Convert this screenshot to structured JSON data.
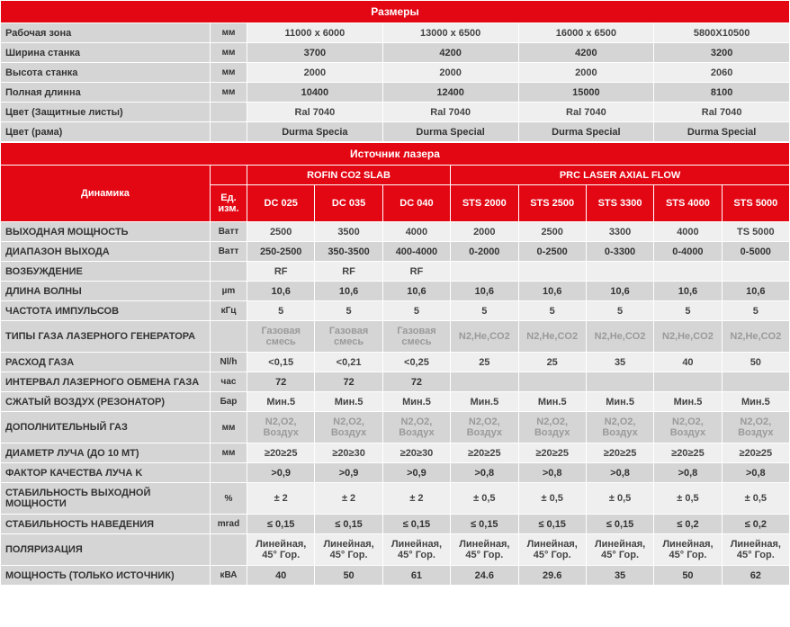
{
  "colors": {
    "red": "#e30613",
    "grey_dark": "#d5d5d5",
    "grey_light": "#efefef",
    "text": "#333"
  },
  "section1": {
    "title": "Размеры",
    "rows": [
      {
        "label": "Рабочая зона",
        "unit": "мм",
        "vals": [
          "11000 x 6000",
          "13000 x 6500",
          "16000 x 6500",
          "5800X10500"
        ]
      },
      {
        "label": "Ширина станка",
        "unit": "мм",
        "vals": [
          "3700",
          "4200",
          "4200",
          "3200"
        ]
      },
      {
        "label": "Высота станка",
        "unit": "мм",
        "vals": [
          "2000",
          "2000",
          "2000",
          "2060"
        ]
      },
      {
        "label": "Полная длинна",
        "unit": "мм",
        "vals": [
          "10400",
          "12400",
          "15000",
          "8100"
        ]
      },
      {
        "label": "Цвет (Защитные листы)",
        "unit": "",
        "vals": [
          "Ral 7040",
          "Ral 7040",
          "Ral 7040",
          "Ral 7040"
        ]
      },
      {
        "label": "Цвет (рама)",
        "unit": "",
        "vals": [
          "Durma Specia",
          "Durma Special",
          "Durma Special",
          "Durma Special"
        ]
      }
    ]
  },
  "section2": {
    "title": "Источник лазера",
    "group1": "ROFIN CO2 SLAB",
    "group2": "PRC LASER AXIAL FLOW",
    "dynLabel": "Динамика",
    "unitLabel": "Ед. изм.",
    "cols": [
      "DC 025",
      "DC 035",
      "DC 040",
      "STS 2000",
      "STS 2500",
      "STS 3300",
      "STS 4000",
      "STS 5000"
    ],
    "rows": [
      {
        "label": "ВЫХОДНАЯ МОЩНОСТЬ",
        "unit": "Ватт",
        "vals": [
          "2500",
          "3500",
          "4000",
          "2000",
          "2500",
          "3300",
          "4000",
          "TS 5000"
        ],
        "pale": false
      },
      {
        "label": "ДИАПАЗОН ВЫХОДА",
        "unit": "Ватт",
        "vals": [
          "250-2500",
          "350-3500",
          "400-4000",
          "0-2000",
          "0-2500",
          "0-3300",
          "0-4000",
          "0-5000"
        ],
        "pale": false
      },
      {
        "label": "ВОЗБУЖДЕНИЕ",
        "unit": "",
        "vals": [
          "RF",
          "RF",
          "RF",
          "",
          "",
          "",
          "",
          ""
        ],
        "pale": false
      },
      {
        "label": "ДЛИНА ВОЛНЫ",
        "unit": "µm",
        "vals": [
          "10,6",
          "10,6",
          "10,6",
          "10,6",
          "10,6",
          "10,6",
          "10,6",
          "10,6"
        ],
        "pale": false
      },
      {
        "label": "ЧАСТОТА ИМПУЛЬСОВ",
        "unit": "кГц",
        "vals": [
          "5",
          "5",
          "5",
          "5",
          "5",
          "5",
          "5",
          "5"
        ],
        "pale": false
      },
      {
        "label": "ТИПЫ ГАЗА ЛАЗЕРНОГО ГЕНЕРАТОРА",
        "unit": "",
        "vals": [
          "Газовая смесь",
          "Газовая смесь",
          "Газовая смесь",
          "N2,He,CO2",
          "N2,He,CO2",
          "N2,He,CO2",
          "N2,He,CO2",
          "N2,He,CO2"
        ],
        "pale": true,
        "tall": true
      },
      {
        "label": "РАСХОД ГАЗА",
        "unit": "Nl/h",
        "vals": [
          "<0,15",
          "<0,21",
          "<0,25",
          "25",
          "25",
          "35",
          "40",
          "50"
        ],
        "pale": false
      },
      {
        "label": "ИНТЕРВАЛ ЛАЗЕРНОГО ОБМЕНА ГАЗА",
        "unit": "час",
        "vals": [
          "72",
          "72",
          "72",
          "",
          "",
          "",
          "",
          ""
        ],
        "pale": false
      },
      {
        "label": "СЖАТЫЙ ВОЗДУХ (РЕЗОНАТОР)",
        "unit": "Бар",
        "vals": [
          "Мин.5",
          "Мин.5",
          "Мин.5",
          "Мин.5",
          "Мин.5",
          "Мин.5",
          "Мин.5",
          "Мин.5"
        ],
        "pale": false
      },
      {
        "label": "ДОПОЛНИТЕЛЬНЫЙ ГАЗ",
        "unit": "мм",
        "vals": [
          "N2,O2, Воздух",
          "N2,O2, Воздух",
          "N2,O2, Воздух",
          "N2,O2, Воздух",
          "N2,O2, Воздух",
          "N2,O2, Воздух",
          "N2,O2, Воздух",
          "N2,O2, Воздух"
        ],
        "pale": true,
        "tall": true
      },
      {
        "label": "ДИАМЕТР ЛУЧА (ДО 10 МТ)",
        "unit": "мм",
        "vals": [
          "≥20≥25",
          "≥20≥30",
          "≥20≥30",
          "≥20≥25",
          "≥20≥25",
          "≥20≥25",
          "≥20≥25",
          "≥20≥25"
        ],
        "pale": false
      },
      {
        "label": "ФАКТОР КАЧЕСТВА ЛУЧА K",
        "unit": "",
        "vals": [
          ">0,9",
          ">0,9",
          ">0,9",
          ">0,8",
          ">0,8",
          ">0,8",
          ">0,8",
          ">0,8"
        ],
        "pale": false
      },
      {
        "label": "СТАБИЛЬНОСТЬ ВЫХОДНОЙ МОЩНОСТИ",
        "unit": "%",
        "vals": [
          "± 2",
          "± 2",
          "± 2",
          "± 0,5",
          "± 0,5",
          "± 0,5",
          "± 0,5",
          "± 0,5"
        ],
        "pale": false,
        "tall": true
      },
      {
        "label": "СТАБИЛЬНОСТЬ НАВЕДЕНИЯ",
        "unit": "mrad",
        "vals": [
          "≤ 0,15",
          "≤ 0,15",
          "≤ 0,15",
          "≤ 0,15",
          "≤ 0,15",
          "≤ 0,15",
          "≤ 0,2",
          "≤ 0,2"
        ],
        "pale": false
      },
      {
        "label": "ПОЛЯРИЗАЦИЯ",
        "unit": "",
        "vals": [
          "Линейная, 45° Гор.",
          "Линейная, 45° Гор.",
          "Линейная, 45° Гор.",
          "Линейная, 45° Гор.",
          "Линейная, 45° Гор.",
          "Линейная, 45° Гор.",
          "Линейная, 45° Гор.",
          "Линейная, 45° Гор."
        ],
        "pale": false,
        "tall": true
      },
      {
        "label": "МОЩНОСТЬ (ТОЛЬКО ИСТОЧНИК)",
        "unit": "кВА",
        "vals": [
          "40",
          "50",
          "61",
          "24.6",
          "29.6",
          "35",
          "50",
          "62"
        ],
        "pale": false
      }
    ]
  }
}
